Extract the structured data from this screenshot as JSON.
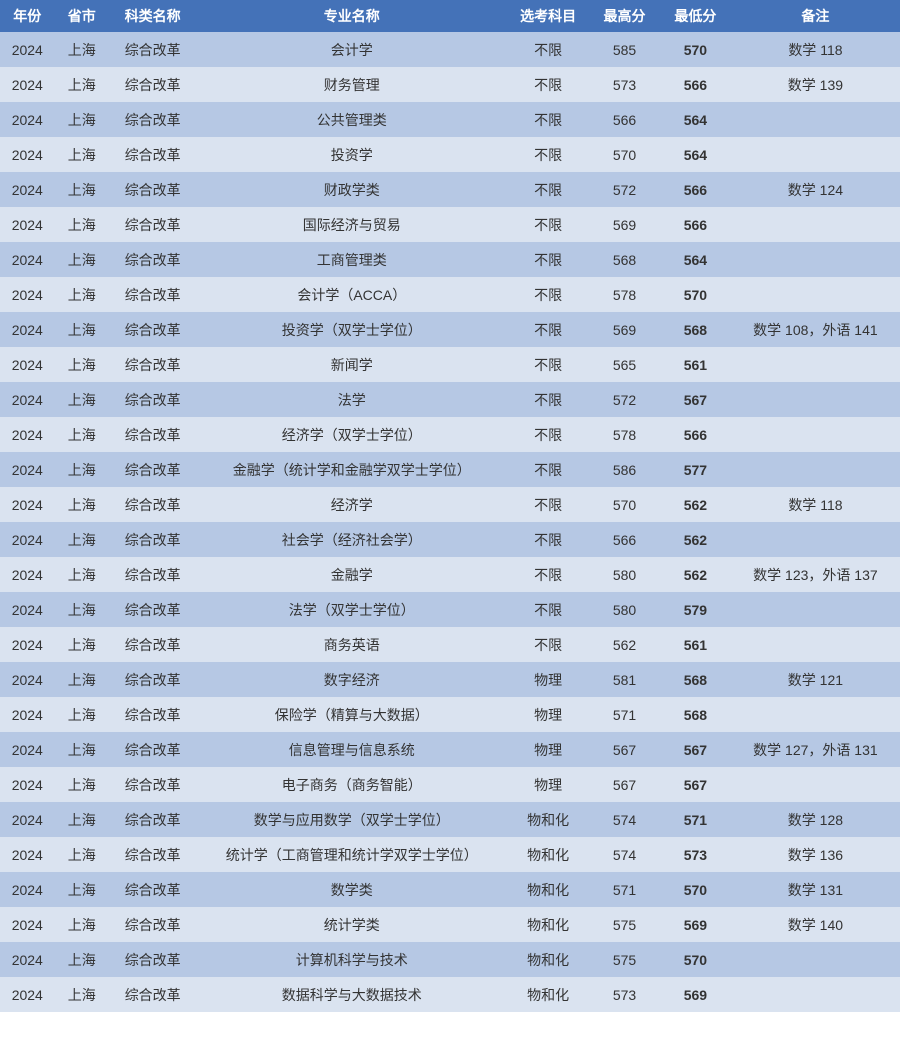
{
  "headers": {
    "year": "年份",
    "province": "省市",
    "category": "科类名称",
    "major": "专业名称",
    "subject": "选考科目",
    "high": "最高分",
    "low": "最低分",
    "note": "备注"
  },
  "rows": [
    {
      "year": "2024",
      "province": "上海",
      "category": "综合改革",
      "major": "会计学",
      "subject": "不限",
      "high": "585",
      "low": "570",
      "note": "数学 118"
    },
    {
      "year": "2024",
      "province": "上海",
      "category": "综合改革",
      "major": "财务管理",
      "subject": "不限",
      "high": "573",
      "low": "566",
      "note": "数学 139"
    },
    {
      "year": "2024",
      "province": "上海",
      "category": "综合改革",
      "major": "公共管理类",
      "subject": "不限",
      "high": "566",
      "low": "564",
      "note": ""
    },
    {
      "year": "2024",
      "province": "上海",
      "category": "综合改革",
      "major": "投资学",
      "subject": "不限",
      "high": "570",
      "low": "564",
      "note": ""
    },
    {
      "year": "2024",
      "province": "上海",
      "category": "综合改革",
      "major": "财政学类",
      "subject": "不限",
      "high": "572",
      "low": "566",
      "note": "数学 124"
    },
    {
      "year": "2024",
      "province": "上海",
      "category": "综合改革",
      "major": "国际经济与贸易",
      "subject": "不限",
      "high": "569",
      "low": "566",
      "note": ""
    },
    {
      "year": "2024",
      "province": "上海",
      "category": "综合改革",
      "major": "工商管理类",
      "subject": "不限",
      "high": "568",
      "low": "564",
      "note": ""
    },
    {
      "year": "2024",
      "province": "上海",
      "category": "综合改革",
      "major": "会计学（ACCA）",
      "subject": "不限",
      "high": "578",
      "low": "570",
      "note": ""
    },
    {
      "year": "2024",
      "province": "上海",
      "category": "综合改革",
      "major": "投资学（双学士学位）",
      "subject": "不限",
      "high": "569",
      "low": "568",
      "note": "数学 108，外语 141"
    },
    {
      "year": "2024",
      "province": "上海",
      "category": "综合改革",
      "major": "新闻学",
      "subject": "不限",
      "high": "565",
      "low": "561",
      "note": ""
    },
    {
      "year": "2024",
      "province": "上海",
      "category": "综合改革",
      "major": "法学",
      "subject": "不限",
      "high": "572",
      "low": "567",
      "note": ""
    },
    {
      "year": "2024",
      "province": "上海",
      "category": "综合改革",
      "major": "经济学（双学士学位）",
      "subject": "不限",
      "high": "578",
      "low": "566",
      "note": ""
    },
    {
      "year": "2024",
      "province": "上海",
      "category": "综合改革",
      "major": "金融学（统计学和金融学双学士学位）",
      "subject": "不限",
      "high": "586",
      "low": "577",
      "note": ""
    },
    {
      "year": "2024",
      "province": "上海",
      "category": "综合改革",
      "major": "经济学",
      "subject": "不限",
      "high": "570",
      "low": "562",
      "note": "数学 118"
    },
    {
      "year": "2024",
      "province": "上海",
      "category": "综合改革",
      "major": "社会学（经济社会学）",
      "subject": "不限",
      "high": "566",
      "low": "562",
      "note": ""
    },
    {
      "year": "2024",
      "province": "上海",
      "category": "综合改革",
      "major": "金融学",
      "subject": "不限",
      "high": "580",
      "low": "562",
      "note": "数学 123，外语 137"
    },
    {
      "year": "2024",
      "province": "上海",
      "category": "综合改革",
      "major": "法学（双学士学位）",
      "subject": "不限",
      "high": "580",
      "low": "579",
      "note": ""
    },
    {
      "year": "2024",
      "province": "上海",
      "category": "综合改革",
      "major": "商务英语",
      "subject": "不限",
      "high": "562",
      "low": "561",
      "note": ""
    },
    {
      "year": "2024",
      "province": "上海",
      "category": "综合改革",
      "major": "数字经济",
      "subject": "物理",
      "high": "581",
      "low": "568",
      "note": "数学 121"
    },
    {
      "year": "2024",
      "province": "上海",
      "category": "综合改革",
      "major": "保险学（精算与大数据）",
      "subject": "物理",
      "high": "571",
      "low": "568",
      "note": ""
    },
    {
      "year": "2024",
      "province": "上海",
      "category": "综合改革",
      "major": "信息管理与信息系统",
      "subject": "物理",
      "high": "567",
      "low": "567",
      "note": "数学 127，外语 131"
    },
    {
      "year": "2024",
      "province": "上海",
      "category": "综合改革",
      "major": "电子商务（商务智能）",
      "subject": "物理",
      "high": "567",
      "low": "567",
      "note": ""
    },
    {
      "year": "2024",
      "province": "上海",
      "category": "综合改革",
      "major": "数学与应用数学（双学士学位）",
      "subject": "物和化",
      "high": "574",
      "low": "571",
      "note": "数学 128"
    },
    {
      "year": "2024",
      "province": "上海",
      "category": "综合改革",
      "major": "统计学（工商管理和统计学双学士学位）",
      "subject": "物和化",
      "high": "574",
      "low": "573",
      "note": "数学 136"
    },
    {
      "year": "2024",
      "province": "上海",
      "category": "综合改革",
      "major": "数学类",
      "subject": "物和化",
      "high": "571",
      "low": "570",
      "note": "数学 131"
    },
    {
      "year": "2024",
      "province": "上海",
      "category": "综合改革",
      "major": "统计学类",
      "subject": "物和化",
      "high": "575",
      "low": "569",
      "note": "数学 140"
    },
    {
      "year": "2024",
      "province": "上海",
      "category": "综合改革",
      "major": "计算机科学与技术",
      "subject": "物和化",
      "high": "575",
      "low": "570",
      "note": ""
    },
    {
      "year": "2024",
      "province": "上海",
      "category": "综合改革",
      "major": "数据科学与大数据技术",
      "subject": "物和化",
      "high": "573",
      "low": "569",
      "note": ""
    }
  ],
  "colors": {
    "header_bg": "#4472b8",
    "header_fg": "#ffffff",
    "row_odd_bg": "#b6c8e4",
    "row_even_bg": "#dae3f0",
    "text": "#333333"
  }
}
